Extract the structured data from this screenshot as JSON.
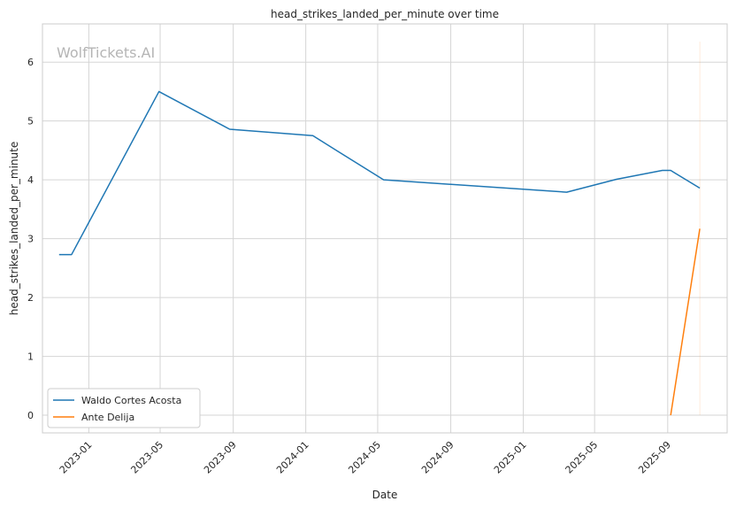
{
  "chart_data": {
    "type": "line",
    "title": "head_strikes_landed_per_minute over time",
    "xlabel": "Date",
    "ylabel": "head_strikes_landed_per_minute",
    "watermark": "WolfTickets.AI",
    "x_ticks": [
      "2023-01",
      "2023-05",
      "2023-09",
      "2024-01",
      "2024-05",
      "2024-09",
      "2025-01",
      "2025-05",
      "2025-09"
    ],
    "y_ticks": [
      0,
      1,
      2,
      3,
      4,
      5,
      6
    ],
    "xlim": [
      "2022-10-15",
      "2025-12-10"
    ],
    "ylim": [
      -0.3,
      6.65
    ],
    "grid": true,
    "legend_position": "lower-left",
    "series": [
      {
        "name": "Waldo Cortes Acosta",
        "color": "#1f77b4",
        "points": [
          {
            "x": "2022-11-12",
            "y": 2.73
          },
          {
            "x": "2022-12-03",
            "y": 2.73
          },
          {
            "x": "2023-04-29",
            "y": 5.5
          },
          {
            "x": "2023-08-26",
            "y": 4.86
          },
          {
            "x": "2024-01-13",
            "y": 4.75
          },
          {
            "x": "2024-05-11",
            "y": 4.0
          },
          {
            "x": "2025-03-15",
            "y": 3.79
          },
          {
            "x": "2025-06-07",
            "y": 4.01
          },
          {
            "x": "2025-08-23",
            "y": 4.16
          },
          {
            "x": "2025-09-06",
            "y": 4.16
          },
          {
            "x": "2025-10-25",
            "y": 3.86
          }
        ]
      },
      {
        "name": "Ante Delija",
        "color": "#ff7f0e",
        "points": [
          {
            "x": "2025-09-06",
            "y": 0.0
          },
          {
            "x": "2025-10-25",
            "y": 3.17
          }
        ]
      }
    ],
    "vertical_marker": {
      "x": "2025-10-25",
      "y_top": 6.35,
      "color": "#ff7f0e"
    }
  }
}
